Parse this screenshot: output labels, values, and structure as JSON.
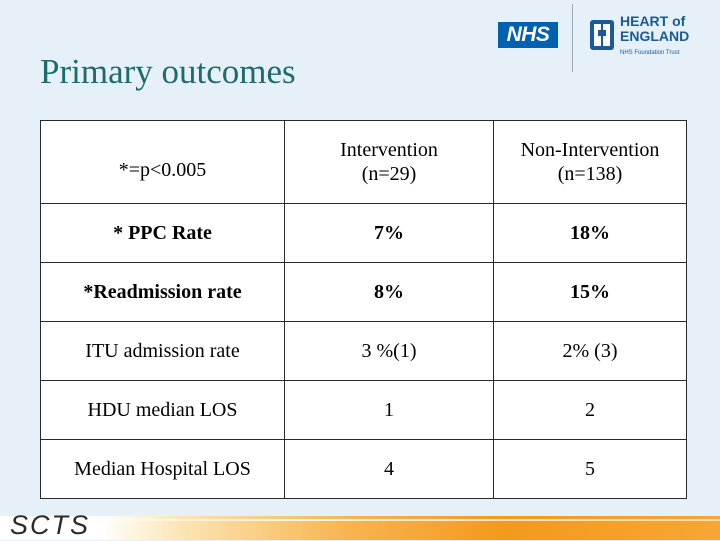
{
  "slide": {
    "title": "Primary outcomes"
  },
  "logos": {
    "nhs": "NHS",
    "trust_line1": "HEART of",
    "trust_line2": "ENGLAND",
    "trust_sub": "NHS Foundation Trust",
    "footer": "SCTS"
  },
  "table": {
    "header": {
      "note": "*=p<0.005",
      "intervention": "Intervention",
      "intervention_n": "(n=29)",
      "non_intervention": "Non-Intervention",
      "non_intervention_n": "(n=138)"
    },
    "rows": [
      {
        "label": "* PPC Rate",
        "intervention": "7%",
        "non_intervention": "18%"
      },
      {
        "label": "*Readmission rate",
        "intervention": "8%",
        "non_intervention": "15%"
      },
      {
        "label": "ITU admission rate",
        "intervention": "3 %(1)",
        "non_intervention": "2% (3)"
      },
      {
        "label": "HDU median LOS",
        "intervention": "1",
        "non_intervention": "2"
      },
      {
        "label": "Median Hospital LOS",
        "intervention": "4",
        "non_intervention": "5"
      }
    ]
  },
  "colors": {
    "background": "#e6f0f8",
    "title": "#1e6b6b",
    "nhs_blue": "#0061b0",
    "footer_orange": "#f39a1a"
  }
}
